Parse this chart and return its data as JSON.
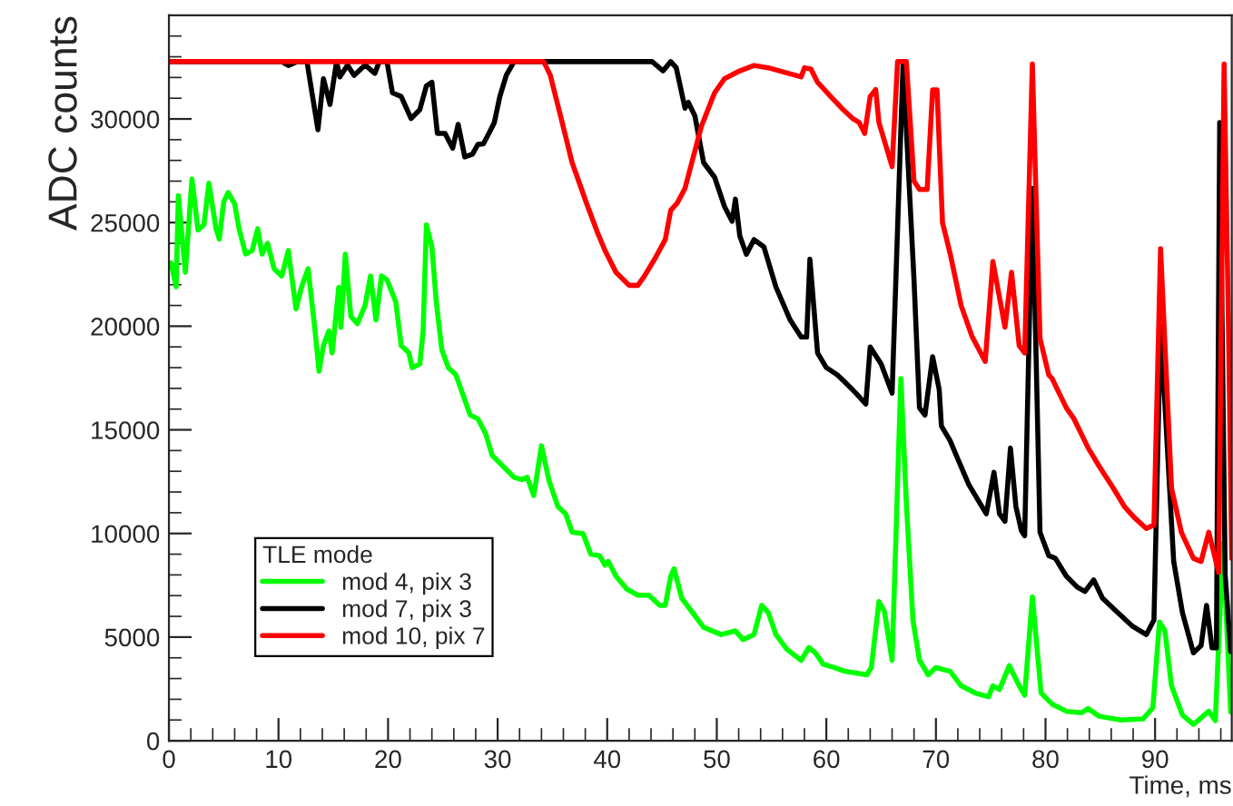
{
  "chart_data": {
    "type": "line",
    "ylabel": "ADC counts",
    "xlabel": "Time, ms",
    "legend_title": "TLE mode",
    "legend": "bottom left",
    "grid": false,
    "marker": "none",
    "line_style": "solid",
    "xlim": [
      0,
      97
    ],
    "xticks": [
      0,
      10,
      20,
      30,
      40,
      50,
      60,
      70,
      80,
      90
    ],
    "ylim": [
      0,
      35000
    ],
    "yticks": [
      0,
      5000,
      10000,
      15000,
      20000,
      25000,
      30000
    ],
    "series": [
      {
        "name": "mod 4, pix 3",
        "color": "#00ff00",
        "x": [
          0.2,
          0.66,
          0.86,
          1.5,
          2.1,
          2.65,
          3.2,
          3.65,
          4.3,
          4.6,
          5.0,
          5.4,
          6.0,
          6.4,
          7.0,
          7.6,
          8.1,
          8.5,
          9.0,
          9.6,
          10.3,
          10.9,
          11.6,
          12.1,
          12.7,
          13.3,
          13.7,
          14.1,
          14.6,
          14.9,
          15.5,
          15.7,
          16.1,
          16.6,
          17.2,
          17.9,
          18.4,
          18.9,
          19.4,
          19.9,
          20.7,
          21.2,
          21.9,
          22.2,
          22.9,
          23.2,
          23.5,
          24.0,
          24.4,
          24.9,
          25.5,
          26.2,
          26.9,
          27.5,
          28.2,
          28.9,
          29.5,
          30.5,
          31.5,
          32.2,
          32.7,
          33.3,
          34.0,
          34.7,
          35.5,
          36.2,
          36.8,
          37.8,
          38.5,
          39.3,
          39.8,
          40.1,
          40.8,
          41.8,
          42.8,
          43.8,
          44.8,
          45.3,
          45.8,
          46.1,
          46.8,
          47.8,
          48.8,
          50.4,
          51.7,
          52.4,
          53.4,
          54.1,
          54.7,
          55.4,
          56.4,
          57.7,
          58.4,
          59.0,
          59.7,
          60.7,
          61.7,
          63.7,
          64.1,
          64.8,
          65.3,
          66.0,
          66.8,
          67.3,
          67.9,
          68.5,
          69.3,
          70.0,
          71.3,
          72.3,
          73.6,
          74.8,
          75.2,
          75.8,
          76.7,
          77.6,
          78.1,
          78.8,
          79.6,
          80.6,
          81.9,
          83.3,
          83.9,
          84.9,
          86.9,
          88.9,
          89.8,
          90.4,
          90.9,
          91.5,
          92.5,
          93.5,
          94.9,
          95.5,
          96.2,
          96.9
        ],
        "values": [
          23050,
          21900,
          26300,
          22600,
          27100,
          24640,
          24900,
          26900,
          24700,
          24200,
          26000,
          26450,
          25900,
          24700,
          23480,
          23650,
          24700,
          23480,
          24000,
          22770,
          22420,
          23650,
          20830,
          21880,
          22770,
          19950,
          17830,
          19060,
          19770,
          18710,
          21880,
          19950,
          23480,
          20480,
          20120,
          21000,
          22420,
          20300,
          22420,
          22240,
          21180,
          19060,
          18710,
          18000,
          18180,
          19770,
          24890,
          23830,
          21180,
          18880,
          18000,
          17650,
          16590,
          15710,
          15530,
          14830,
          13770,
          13240,
          12710,
          12600,
          12710,
          11830,
          14230,
          12530,
          11300,
          10950,
          10060,
          9990,
          9000,
          8930,
          8470,
          8650,
          7940,
          7310,
          7020,
          7020,
          6530,
          6530,
          7940,
          8300,
          6880,
          6180,
          5470,
          5120,
          5300,
          4880,
          5120,
          6530,
          6180,
          5120,
          4410,
          3880,
          4500,
          4240,
          3700,
          3530,
          3350,
          3180,
          3530,
          6710,
          6240,
          3880,
          17480,
          11470,
          5830,
          3880,
          3180,
          3530,
          3350,
          2650,
          2300,
          2120,
          2650,
          2470,
          3620,
          2650,
          2200,
          6940,
          2300,
          1770,
          1420,
          1350,
          1550,
          1180,
          1000,
          1050,
          1590,
          5730,
          5300,
          2650,
          1240,
          790,
          1420,
          970,
          9530,
          1400
        ]
      },
      {
        "name": "mod 7, pix 3",
        "color": "#000000",
        "x": [
          0.1,
          10.3,
          10.9,
          11.7,
          12.6,
          12.9,
          13.6,
          14.1,
          14.7,
          15.3,
          15.6,
          16.3,
          16.9,
          17.9,
          18.8,
          19.2,
          19.9,
          20.4,
          21.2,
          22.1,
          22.9,
          23.5,
          24.0,
          24.5,
          25.2,
          25.9,
          26.4,
          27.0,
          27.7,
          28.2,
          28.7,
          29.2,
          29.7,
          30.2,
          30.8,
          31.5,
          44.1,
          45.1,
          45.8,
          46.3,
          47.1,
          47.4,
          48.0,
          48.8,
          49.8,
          50.7,
          51.4,
          51.7,
          52.1,
          52.7,
          53.4,
          54.3,
          55.4,
          56.7,
          57.7,
          58.2,
          58.5,
          59.2,
          60.0,
          61.0,
          61.7,
          62.7,
          63.6,
          64.0,
          65.0,
          66.0,
          67.0,
          68.0,
          68.5,
          69.0,
          69.7,
          70.3,
          70.5,
          71.3,
          72.0,
          73.0,
          74.0,
          74.6,
          75.3,
          75.8,
          76.3,
          76.8,
          77.3,
          77.8,
          78.1,
          78.8,
          79.5,
          80.3,
          80.9,
          81.9,
          82.9,
          83.6,
          84.4,
          85.2,
          86.6,
          87.9,
          89.2,
          89.9,
          90.5,
          91.7,
          92.5,
          93.5,
          94.2,
          94.7,
          95.2,
          95.6,
          95.9,
          96.4,
          96.9
        ],
        "values": [
          32767,
          32767,
          32580,
          32767,
          32767,
          31770,
          29480,
          31940,
          30700,
          32767,
          32030,
          32600,
          32100,
          32600,
          32200,
          32767,
          32767,
          31260,
          31080,
          30020,
          30450,
          31600,
          31770,
          29300,
          29300,
          28590,
          29740,
          28170,
          28300,
          28770,
          28800,
          29300,
          29830,
          31080,
          32120,
          32767,
          32767,
          32320,
          32767,
          32470,
          30520,
          30800,
          30150,
          27890,
          27190,
          25780,
          25060,
          26130,
          24360,
          23470,
          24180,
          23830,
          21890,
          20300,
          19480,
          19480,
          23230,
          18710,
          18000,
          17650,
          17300,
          16770,
          16240,
          19000,
          18180,
          16770,
          32650,
          22240,
          16060,
          15710,
          18530,
          16940,
          15180,
          14470,
          13590,
          12360,
          11470,
          10950,
          12950,
          10950,
          10590,
          14120,
          11300,
          10130,
          9890,
          26650,
          10060,
          8930,
          8800,
          7940,
          7410,
          7200,
          7760,
          6880,
          6180,
          5540,
          5120,
          5830,
          20000,
          8650,
          6180,
          4240,
          4590,
          6530,
          4480,
          4480,
          29830,
          8000,
          4300
        ]
      },
      {
        "name": "mod 10, pix 7",
        "color": "#ff0000",
        "x": [
          0.1,
          34.2,
          34.8,
          35.8,
          36.8,
          38.1,
          39.1,
          39.8,
          40.8,
          42.0,
          42.8,
          43.4,
          44.4,
          45.3,
          45.8,
          46.4,
          47.1,
          47.8,
          48.6,
          49.8,
          50.7,
          52.1,
          53.4,
          54.7,
          56.4,
          57.7,
          58.0,
          58.6,
          59.2,
          60.4,
          61.4,
          62.4,
          63.0,
          63.5,
          64.0,
          64.5,
          64.8,
          66.0,
          66.5,
          67.3,
          68.0,
          68.5,
          69.2,
          69.7,
          70.1,
          70.6,
          71.3,
          72.3,
          73.3,
          74.5,
          75.2,
          76.3,
          76.9,
          77.6,
          78.1,
          78.8,
          79.5,
          80.3,
          80.6,
          81.9,
          82.6,
          83.9,
          84.9,
          86.2,
          87.2,
          88.1,
          89.2,
          89.9,
          90.5,
          91.5,
          92.4,
          93.5,
          94.2,
          94.9,
          95.8,
          96.3,
          96.7,
          97.0
        ],
        "values": [
          32767,
          32767,
          32120,
          30020,
          27890,
          25950,
          24540,
          23650,
          22600,
          21970,
          21970,
          22420,
          23300,
          24180,
          25600,
          25950,
          26650,
          28060,
          29650,
          31260,
          31940,
          32320,
          32580,
          32470,
          32220,
          32030,
          32470,
          32400,
          31770,
          31080,
          30520,
          30020,
          29830,
          29300,
          31080,
          31420,
          29830,
          27700,
          32767,
          32767,
          27000,
          26600,
          26600,
          31400,
          31400,
          25000,
          23500,
          21000,
          19500,
          18300,
          23120,
          19950,
          22600,
          19060,
          18710,
          32650,
          19410,
          17650,
          17480,
          16060,
          15530,
          14120,
          13240,
          12180,
          11300,
          10770,
          10240,
          10410,
          23740,
          12180,
          10060,
          8800,
          8650,
          10060,
          8120,
          32650,
          20000,
          8800
        ]
      }
    ]
  }
}
